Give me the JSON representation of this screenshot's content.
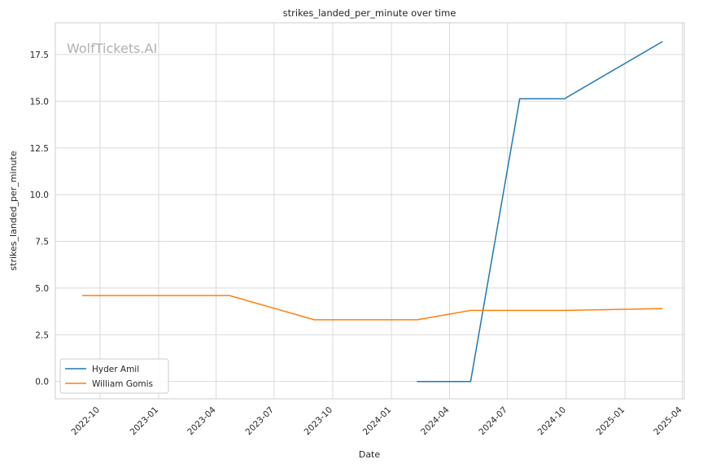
{
  "chart_data": {
    "type": "line",
    "title": "strikes_landed_per_minute over time",
    "xlabel": "Date",
    "ylabel": "strikes_landed_per_minute",
    "watermark": "WolfTickets.AI",
    "x_ticks": [
      "2022-10",
      "2023-01",
      "2023-04",
      "2023-07",
      "2023-10",
      "2024-01",
      "2024-04",
      "2024-07",
      "2024-10",
      "2025-01",
      "2025-04"
    ],
    "y_ticks": [
      "0.0",
      "2.5",
      "5.0",
      "7.5",
      "10.0",
      "12.5",
      "15.0",
      "17.5"
    ],
    "xlim": [
      "2022-07-23",
      "2025-04-04"
    ],
    "ylim": [
      -0.93,
      19.2
    ],
    "grid": true,
    "legend_position": "lower-left",
    "series": [
      {
        "name": "Hyder Amil",
        "color": "#1f77b4",
        "points": [
          [
            "2024-02-10",
            0.0
          ],
          [
            "2024-05-04",
            0.0
          ],
          [
            "2024-07-20",
            15.13
          ],
          [
            "2024-09-28",
            15.13
          ],
          [
            "2025-03-01",
            18.2
          ]
        ]
      },
      {
        "name": "William Gomis",
        "color": "#ff7f0e",
        "points": [
          [
            "2022-09-03",
            4.6
          ],
          [
            "2023-04-22",
            4.6
          ],
          [
            "2023-09-02",
            3.3
          ],
          [
            "2024-02-10",
            3.3
          ],
          [
            "2024-05-04",
            3.8
          ],
          [
            "2024-09-28",
            3.8
          ],
          [
            "2025-03-01",
            3.9
          ]
        ]
      }
    ]
  }
}
